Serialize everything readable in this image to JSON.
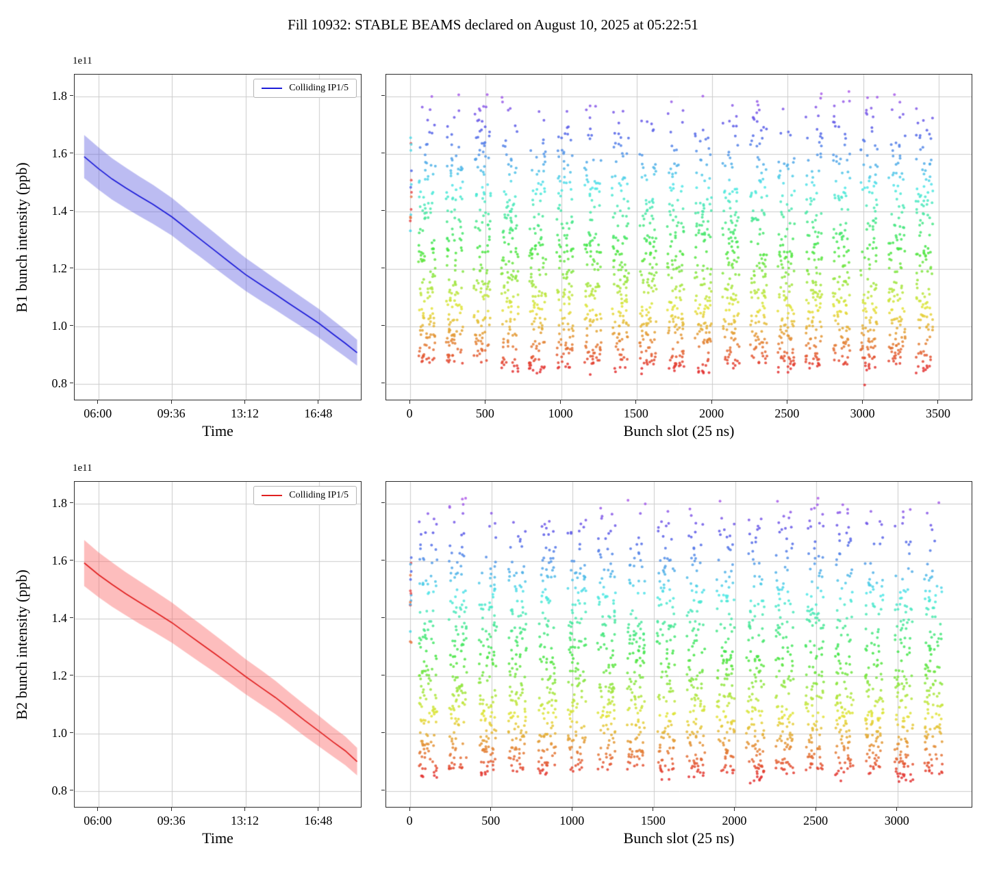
{
  "figure": {
    "title": "Fill 10932: STABLE BEAMS declared on August 10, 2025 at 05:22:51",
    "background": "#ffffff"
  },
  "chart_data": [
    {
      "id": "b1_time",
      "type": "line",
      "beam": "B1",
      "xlabel": "Time",
      "ylabel": "B1 bunch intensity (ppb)",
      "y_offset_text": "1e11",
      "legend": {
        "location": "upper right",
        "entries": [
          {
            "label": "Colliding IP1/5",
            "color": "#1a1ad8"
          }
        ]
      },
      "line_color": "#1a1ad8",
      "band_color": "rgba(80,80,220,0.38)",
      "xlim": [
        290,
        1135
      ],
      "ylim": [
        0.74,
        1.875
      ],
      "x_units": "minutes since midnight",
      "intensity_units": "1e11 ppb",
      "x_ticks": [
        {
          "v": 360,
          "label": "06:00"
        },
        {
          "v": 576,
          "label": "09:36"
        },
        {
          "v": 792,
          "label": "13:12"
        },
        {
          "v": 1008,
          "label": "16:48"
        }
      ],
      "y_ticks": [
        {
          "v": 0.8,
          "label": "0.8"
        },
        {
          "v": 1.0,
          "label": "1.0"
        },
        {
          "v": 1.2,
          "label": "1.2"
        },
        {
          "v": 1.4,
          "label": "1.4"
        },
        {
          "v": 1.6,
          "label": "1.6"
        },
        {
          "v": 1.8,
          "label": "1.8"
        }
      ],
      "x": [
        318,
        360,
        400,
        440,
        480,
        520,
        576,
        620,
        660,
        700,
        745,
        792,
        840,
        880,
        920,
        965,
        1008,
        1050,
        1085,
        1120
      ],
      "mean": [
        1.59,
        1.548,
        1.512,
        1.481,
        1.452,
        1.424,
        1.38,
        1.339,
        1.302,
        1.265,
        1.223,
        1.18,
        1.142,
        1.111,
        1.079,
        1.044,
        1.01,
        0.972,
        0.941,
        0.908
      ],
      "upper": [
        1.665,
        1.622,
        1.584,
        1.552,
        1.521,
        1.492,
        1.446,
        1.403,
        1.364,
        1.326,
        1.282,
        1.238,
        1.198,
        1.165,
        1.132,
        1.095,
        1.06,
        1.02,
        0.988,
        0.953
      ],
      "lower": [
        1.515,
        1.475,
        1.44,
        1.411,
        1.383,
        1.356,
        1.315,
        1.275,
        1.24,
        1.204,
        1.164,
        1.123,
        1.086,
        1.057,
        1.026,
        0.993,
        0.96,
        0.924,
        0.894,
        0.863
      ]
    },
    {
      "id": "b1_slots",
      "type": "scatter",
      "beam": "B1",
      "xlabel": "Bunch slot (25 ns)",
      "ylabel": "",
      "xlim": [
        -159,
        3727
      ],
      "ylim": [
        0.74,
        1.875
      ],
      "x_ticks": [
        {
          "v": 0,
          "label": "0"
        },
        {
          "v": 500,
          "label": "500"
        },
        {
          "v": 1000,
          "label": "1000"
        },
        {
          "v": 1500,
          "label": "1500"
        },
        {
          "v": 2000,
          "label": "2000"
        },
        {
          "v": 2500,
          "label": "2500"
        },
        {
          "v": 3000,
          "label": "3000"
        },
        {
          "v": 3500,
          "label": "3500"
        }
      ],
      "y_ticks": [
        {
          "v": 0.8,
          "label": ""
        },
        {
          "v": 1.0,
          "label": ""
        },
        {
          "v": 1.2,
          "label": ""
        },
        {
          "v": 1.4,
          "label": ""
        },
        {
          "v": 1.6,
          "label": ""
        },
        {
          "v": 1.8,
          "label": ""
        }
      ],
      "points_model": {
        "seed": 109321,
        "trains": {
          "count": 19,
          "first_slot": 55,
          "length_slots": 112,
          "pitch_slots": 183,
          "bunches_per_train": 130
        },
        "pilot_bunches": {
          "count": 16,
          "x_range": [
            0,
            9
          ],
          "y_range": [
            1.3,
            1.66
          ]
        },
        "intensity_range_1e11": [
          0.85,
          1.82
        ],
        "distribution": "dense between 0.90 and 1.25, sparse above 1.60, few outliers to 1.82 and below 0.85",
        "colormap": "rainbow by bunch intensity (red = low, violet = high)"
      }
    },
    {
      "id": "b2_time",
      "type": "line",
      "beam": "B2",
      "xlabel": "Time",
      "ylabel": "B2 bunch intensity (ppb)",
      "y_offset_text": "1e11",
      "legend": {
        "location": "upper right",
        "entries": [
          {
            "label": "Colliding IP1/5",
            "color": "#e02020"
          }
        ]
      },
      "line_color": "#e02020",
      "band_color": "rgba(250,90,90,0.40)",
      "xlim": [
        290,
        1135
      ],
      "ylim": [
        0.74,
        1.875
      ],
      "x_units": "minutes since midnight",
      "intensity_units": "1e11 ppb",
      "x_ticks": [
        {
          "v": 360,
          "label": "06:00"
        },
        {
          "v": 576,
          "label": "09:36"
        },
        {
          "v": 792,
          "label": "13:12"
        },
        {
          "v": 1008,
          "label": "16:48"
        }
      ],
      "y_ticks": [
        {
          "v": 0.8,
          "label": "0.8"
        },
        {
          "v": 1.0,
          "label": "1.0"
        },
        {
          "v": 1.2,
          "label": "1.2"
        },
        {
          "v": 1.4,
          "label": "1.4"
        },
        {
          "v": 1.6,
          "label": "1.6"
        },
        {
          "v": 1.8,
          "label": "1.8"
        }
      ],
      "x": [
        318,
        360,
        400,
        440,
        480,
        520,
        576,
        620,
        660,
        700,
        745,
        792,
        840,
        880,
        920,
        965,
        1008,
        1050,
        1085,
        1120
      ],
      "mean": [
        1.593,
        1.552,
        1.518,
        1.486,
        1.456,
        1.427,
        1.385,
        1.347,
        1.313,
        1.279,
        1.24,
        1.198,
        1.158,
        1.125,
        1.088,
        1.046,
        1.008,
        0.97,
        0.94,
        0.902
      ],
      "upper": [
        1.673,
        1.63,
        1.595,
        1.561,
        1.53,
        1.499,
        1.455,
        1.415,
        1.38,
        1.344,
        1.303,
        1.259,
        1.218,
        1.183,
        1.144,
        1.101,
        1.061,
        1.021,
        0.99,
        0.95
      ],
      "lower": [
        1.513,
        1.474,
        1.441,
        1.411,
        1.382,
        1.355,
        1.315,
        1.279,
        1.246,
        1.214,
        1.177,
        1.137,
        1.099,
        1.067,
        1.032,
        0.991,
        0.955,
        0.919,
        0.89,
        0.854
      ]
    },
    {
      "id": "b2_slots",
      "type": "scatter",
      "beam": "B2",
      "xlabel": "Bunch slot (25 ns)",
      "ylabel": "",
      "xlim": [
        -148,
        3465
      ],
      "ylim": [
        0.74,
        1.875
      ],
      "x_ticks": [
        {
          "v": 0,
          "label": "0"
        },
        {
          "v": 500,
          "label": "500"
        },
        {
          "v": 1000,
          "label": "1000"
        },
        {
          "v": 1500,
          "label": "1500"
        },
        {
          "v": 2000,
          "label": "2000"
        },
        {
          "v": 2500,
          "label": "2500"
        },
        {
          "v": 3000,
          "label": "3000"
        }
      ],
      "y_ticks": [
        {
          "v": 0.8,
          "label": ""
        },
        {
          "v": 1.0,
          "label": ""
        },
        {
          "v": 1.2,
          "label": ""
        },
        {
          "v": 1.4,
          "label": ""
        },
        {
          "v": 1.6,
          "label": ""
        },
        {
          "v": 1.8,
          "label": ""
        }
      ],
      "points_model": {
        "seed": 209322,
        "trains": {
          "count": 18,
          "first_slot": 55,
          "length_slots": 112,
          "pitch_slots": 183,
          "bunches_per_train": 134
        },
        "pilot_bunches": {
          "count": 16,
          "x_range": [
            0,
            9
          ],
          "y_range": [
            1.3,
            1.66
          ]
        },
        "intensity_range_1e11": [
          0.85,
          1.82
        ],
        "distribution": "dense between 0.90 and 1.25, sparse above 1.60, few outliers to 1.82 and below 0.85",
        "colormap": "rainbow by bunch intensity (red = low, violet = high)"
      }
    }
  ]
}
